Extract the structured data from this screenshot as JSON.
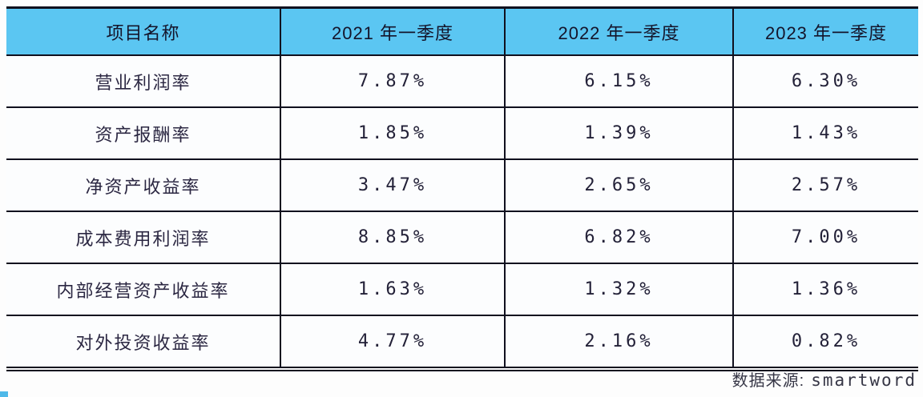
{
  "chart_data": {
    "type": "table",
    "title": "",
    "columns": [
      "项目名称",
      "2021 年一季度",
      "2022 年一季度",
      "2023 年一季度"
    ],
    "rows": [
      [
        "营业利润率",
        "7.87%",
        "6.15%",
        "6.30%"
      ],
      [
        "资产报酬率",
        "1.85%",
        "1.39%",
        "1.43%"
      ],
      [
        "净资产收益率",
        "3.47%",
        "2.65%",
        "2.57%"
      ],
      [
        "成本费用利润率",
        "8.85%",
        "6.82%",
        "7.00%"
      ],
      [
        "内部经营资产收益率",
        "1.63%",
        "1.32%",
        "1.36%"
      ],
      [
        "对外投资收益率",
        "4.77%",
        "2.16%",
        "0.82%"
      ]
    ],
    "source_note": "数据来源: smartword"
  },
  "footer": {
    "source_label": "数据来源:",
    "source_value": "smartword"
  },
  "colors": {
    "header_bg": "#5bc6f2",
    "border": "#10101e",
    "text": "#211f38",
    "page_bg": "#fdfdfd",
    "corner_speck": "#4fb9e9"
  }
}
